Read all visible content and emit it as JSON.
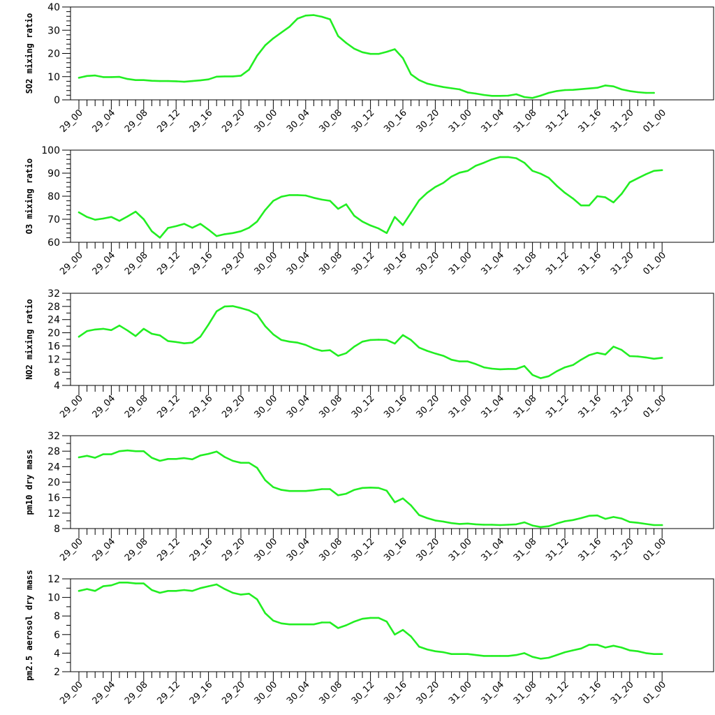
{
  "colors": {
    "series": "#22ee22",
    "axis": "#000000"
  },
  "chart_data": [
    {
      "type": "line",
      "ylabel": "SO2 mixing ratio",
      "ylim": [
        0,
        40
      ],
      "y_major": [
        0,
        10,
        20,
        30,
        40
      ],
      "y_minor_step": 2,
      "x_tick_labels": [
        "29_00",
        "29_04",
        "29_08",
        "29_12",
        "29_16",
        "29_20",
        "30_00",
        "30_04",
        "30_08",
        "30_12",
        "30_16",
        "30_20",
        "31_00",
        "31_04",
        "31_08",
        "31_12",
        "31_16",
        "31_20",
        "01_00"
      ],
      "series": [
        {
          "values": [
            9.5,
            10.3,
            10.5,
            9.8,
            9.8,
            9.9,
            9.0,
            8.5,
            8.5,
            8.2,
            8.1,
            8.1,
            8.0,
            7.8,
            8.1,
            8.4,
            8.8,
            10.0,
            10.1,
            10.1,
            10.4,
            13.0,
            19.0,
            23.5,
            26.5,
            29.0,
            31.5,
            35.0,
            36.3,
            36.5,
            35.8,
            34.7,
            27.5,
            24.5,
            22.0,
            20.5,
            19.8,
            19.8,
            20.7,
            21.8,
            18.0,
            11.0,
            8.5,
            7.0,
            6.2,
            5.5,
            5.0,
            4.5,
            3.2,
            2.7,
            2.1,
            1.7,
            1.7,
            1.8,
            2.4,
            1.2,
            0.8,
            1.8,
            3.0,
            3.8,
            4.2,
            4.3,
            4.6,
            4.9,
            5.2,
            6.2,
            5.8,
            4.5,
            3.8,
            3.3,
            3.0,
            3.0
          ]
        }
      ]
    },
    {
      "type": "line",
      "ylabel": "O3 mixing ratio",
      "ylim": [
        60,
        100
      ],
      "y_major": [
        60,
        70,
        80,
        90,
        100
      ],
      "y_minor_step": 2,
      "x_tick_labels": [
        "29_00",
        "29_04",
        "29_08",
        "29_12",
        "29_16",
        "29_20",
        "30_00",
        "30_04",
        "30_08",
        "30_12",
        "30_16",
        "30_20",
        "31_00",
        "31_04",
        "31_08",
        "31_12",
        "31_16",
        "31_20",
        "01_00"
      ],
      "series": [
        {
          "values": [
            73.0,
            71.0,
            69.8,
            70.3,
            71.0,
            69.3,
            71.2,
            73.3,
            70.0,
            64.8,
            62.0,
            66.2,
            67.0,
            68.0,
            66.3,
            68.0,
            65.5,
            62.7,
            63.5,
            64.0,
            64.8,
            66.3,
            69.0,
            74.0,
            78.0,
            79.8,
            80.5,
            80.5,
            80.3,
            79.3,
            78.5,
            78.0,
            74.5,
            76.5,
            71.5,
            69.0,
            67.3,
            66.0,
            64.0,
            71.0,
            67.5,
            72.8,
            78.2,
            81.5,
            84.0,
            85.8,
            88.5,
            90.2,
            91.0,
            93.2,
            94.5,
            96.0,
            97.0,
            97.0,
            96.5,
            94.5,
            91.0,
            89.8,
            88.0,
            84.5,
            81.5,
            79.0,
            76.0,
            76.0,
            80.0,
            79.5,
            77.3,
            81.0,
            86.0,
            87.8,
            89.5,
            91.0,
            91.3
          ]
        }
      ]
    },
    {
      "type": "line",
      "ylabel": "NO2 mixing ratio",
      "ylim": [
        4,
        32
      ],
      "y_major": [
        4,
        8,
        12,
        16,
        20,
        24,
        28,
        32
      ],
      "y_minor_step": 2,
      "x_tick_labels": [
        "29_00",
        "29_04",
        "29_08",
        "29_12",
        "29_16",
        "29_20",
        "30_00",
        "30_04",
        "30_08",
        "30_12",
        "30_16",
        "30_20",
        "31_00",
        "31_04",
        "31_08",
        "31_12",
        "31_16",
        "31_20",
        "01_00"
      ],
      "series": [
        {
          "values": [
            18.8,
            20.5,
            21.0,
            21.2,
            20.8,
            22.2,
            20.7,
            19.0,
            21.2,
            19.7,
            19.2,
            17.5,
            17.2,
            16.8,
            17.0,
            18.8,
            22.5,
            26.5,
            28.0,
            28.1,
            27.5,
            26.8,
            25.5,
            22.0,
            19.5,
            17.8,
            17.3,
            17.0,
            16.3,
            15.2,
            14.5,
            14.7,
            13.0,
            13.8,
            15.8,
            17.3,
            17.8,
            17.9,
            17.8,
            16.7,
            19.3,
            17.8,
            15.5,
            14.5,
            13.7,
            13.0,
            11.8,
            11.3,
            11.3,
            10.5,
            9.5,
            9.1,
            8.9,
            9.0,
            9.0,
            9.9,
            7.2,
            6.2,
            6.8,
            8.3,
            9.5,
            10.2,
            11.8,
            13.2,
            13.9,
            13.4,
            15.8,
            14.8,
            12.9,
            12.8,
            12.5,
            12.1,
            12.4
          ]
        }
      ]
    },
    {
      "type": "line",
      "ylabel": "pm10 dry mass",
      "ylim": [
        8,
        32
      ],
      "y_major": [
        8,
        12,
        16,
        20,
        24,
        28,
        32
      ],
      "y_minor_step": 2,
      "x_tick_labels": [
        "29_00",
        "29_04",
        "29_08",
        "29_12",
        "29_16",
        "29_20",
        "30_00",
        "30_04",
        "30_08",
        "30_12",
        "30_16",
        "30_20",
        "31_00",
        "31_04",
        "31_08",
        "31_12",
        "31_16",
        "31_20",
        "01_00"
      ],
      "series": [
        {
          "values": [
            26.4,
            26.8,
            26.3,
            27.2,
            27.2,
            28.0,
            28.2,
            28.0,
            28.0,
            26.3,
            25.5,
            26.0,
            26.0,
            26.2,
            25.9,
            26.9,
            27.3,
            27.9,
            26.5,
            25.5,
            25.0,
            25.0,
            23.7,
            20.5,
            18.7,
            18.0,
            17.7,
            17.7,
            17.7,
            17.9,
            18.2,
            18.2,
            16.6,
            17.0,
            18.0,
            18.5,
            18.6,
            18.5,
            17.8,
            14.8,
            15.8,
            14.0,
            11.5,
            10.7,
            10.1,
            9.8,
            9.4,
            9.2,
            9.3,
            9.1,
            9.0,
            9.0,
            8.9,
            9.0,
            9.1,
            9.6,
            8.8,
            8.4,
            8.6,
            9.3,
            9.9,
            10.2,
            10.7,
            11.3,
            11.4,
            10.5,
            11.0,
            10.6,
            9.7,
            9.5,
            9.2,
            8.9,
            8.9
          ]
        }
      ]
    },
    {
      "type": "line",
      "ylabel": "pm2.5 aerosol dry mass",
      "ylim": [
        2,
        12
      ],
      "y_major": [
        2,
        4,
        6,
        8,
        10,
        12
      ],
      "y_minor_step": 1,
      "x_tick_labels": [
        "29_00",
        "29_04",
        "29_08",
        "29_12",
        "29_16",
        "29_20",
        "30_00",
        "30_04",
        "30_08",
        "30_12",
        "30_16",
        "30_20",
        "31_00",
        "31_04",
        "31_08",
        "31_12",
        "31_16",
        "31_20",
        "01_00"
      ],
      "series": [
        {
          "values": [
            10.7,
            10.9,
            10.7,
            11.2,
            11.3,
            11.6,
            11.6,
            11.5,
            11.5,
            10.8,
            10.5,
            10.7,
            10.7,
            10.8,
            10.7,
            11.0,
            11.2,
            11.4,
            10.9,
            10.5,
            10.3,
            10.4,
            9.8,
            8.3,
            7.5,
            7.2,
            7.1,
            7.1,
            7.1,
            7.1,
            7.3,
            7.3,
            6.7,
            7.0,
            7.4,
            7.7,
            7.8,
            7.8,
            7.4,
            6.0,
            6.5,
            5.8,
            4.7,
            4.4,
            4.2,
            4.1,
            3.9,
            3.9,
            3.9,
            3.8,
            3.7,
            3.7,
            3.7,
            3.7,
            3.8,
            4.0,
            3.6,
            3.4,
            3.5,
            3.8,
            4.1,
            4.3,
            4.5,
            4.9,
            4.9,
            4.6,
            4.8,
            4.6,
            4.3,
            4.2,
            4.0,
            3.9,
            3.9
          ]
        }
      ]
    }
  ]
}
